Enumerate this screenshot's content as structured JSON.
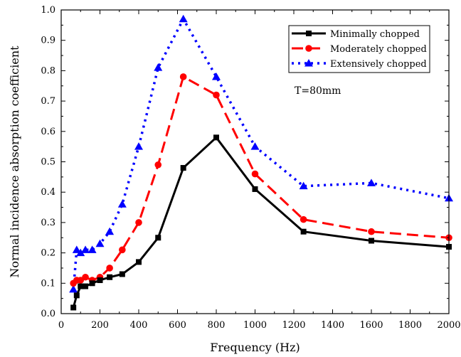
{
  "chart_data": {
    "type": "line",
    "xlabel": "Frequency (Hz)",
    "ylabel": "Normal incidence absorption coefficient",
    "xlim": [
      0,
      2000
    ],
    "ylim": [
      0,
      1.0
    ],
    "xticks": [
      0,
      200,
      400,
      600,
      800,
      1000,
      1200,
      1400,
      1600,
      1800,
      2000
    ],
    "yticks": [
      0.0,
      0.1,
      0.2,
      0.3,
      0.4,
      0.5,
      0.6,
      0.7,
      0.8,
      0.9,
      1.0
    ],
    "ytick_labels": [
      "0.0",
      "0.1",
      "0.2",
      "0.3",
      "0.4",
      "0.5",
      "0.6",
      "0.7",
      "0.8",
      "0.9",
      "1.0"
    ],
    "grid": false,
    "legend_position": "top-right",
    "annotation": "T=80mm",
    "series": [
      {
        "name": "Minimally chopped",
        "color": "#000000",
        "line_style": "solid",
        "marker": "square",
        "x": [
          63,
          80,
          100,
          125,
          160,
          200,
          250,
          315,
          400,
          500,
          630,
          800,
          1000,
          1250,
          1600,
          2000
        ],
        "y": [
          0.02,
          0.06,
          0.09,
          0.09,
          0.1,
          0.11,
          0.12,
          0.13,
          0.17,
          0.25,
          0.48,
          0.58,
          0.41,
          0.27,
          0.24,
          0.22
        ]
      },
      {
        "name": "Moderately chopped",
        "color": "#ff0000",
        "line_style": "dashed",
        "marker": "circle",
        "x": [
          63,
          80,
          100,
          125,
          160,
          200,
          250,
          315,
          400,
          500,
          630,
          800,
          1000,
          1250,
          1600,
          2000
        ],
        "y": [
          0.1,
          0.11,
          0.11,
          0.12,
          0.11,
          0.12,
          0.15,
          0.21,
          0.3,
          0.49,
          0.78,
          0.72,
          0.46,
          0.31,
          0.27,
          0.25
        ]
      },
      {
        "name": "Extensively chopped",
        "color": "#0000ff",
        "line_style": "dotted",
        "marker": "triangle",
        "x": [
          63,
          80,
          100,
          125,
          160,
          200,
          250,
          315,
          400,
          500,
          630,
          800,
          1000,
          1250,
          1600,
          2000
        ],
        "y": [
          0.08,
          0.21,
          0.2,
          0.21,
          0.21,
          0.23,
          0.27,
          0.36,
          0.55,
          0.81,
          0.97,
          0.78,
          0.55,
          0.42,
          0.43,
          0.38
        ]
      }
    ]
  }
}
